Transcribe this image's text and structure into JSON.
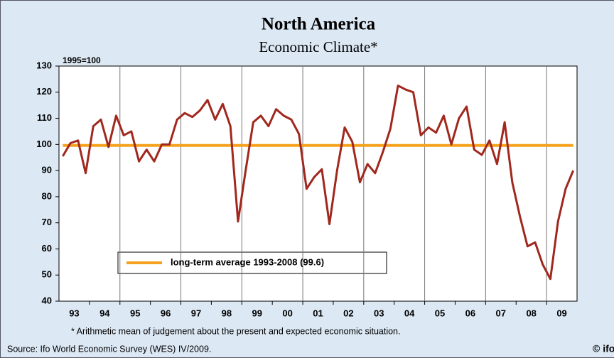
{
  "chart_data": {
    "type": "line",
    "title": "North America",
    "subtitle": "Economic Climate*",
    "y_axis_note": "1995=100",
    "footnote": "* Arithmetic mean of judgement about the present and expected economic situation.",
    "source": "Source: Ifo World Economic Survey (WES) IV/2009.",
    "logo": "© ifo",
    "categories": [
      null,
      "93",
      null,
      null,
      null,
      "94",
      null,
      null,
      null,
      "95",
      null,
      null,
      null,
      "96",
      null,
      null,
      null,
      "97",
      null,
      null,
      null,
      "98",
      null,
      null,
      null,
      "99",
      null,
      null,
      null,
      "00",
      null,
      null,
      null,
      "01",
      null,
      null,
      null,
      "02",
      null,
      null,
      null,
      "03",
      null,
      null,
      null,
      "04",
      null,
      null,
      null,
      "05",
      null,
      null,
      null,
      "06",
      null,
      null,
      null,
      "07",
      null,
      null,
      null,
      "08",
      null,
      null,
      null,
      "09",
      null,
      null
    ],
    "series": [
      {
        "name": "Economic Climate",
        "color": "#a0281e",
        "values": [
          95.5,
          100.5,
          101.5,
          89,
          107,
          109.5,
          99,
          111,
          103.5,
          105,
          93.5,
          98,
          93.5,
          100,
          100,
          109.5,
          112,
          110.5,
          113,
          117,
          109.5,
          115.5,
          107,
          70.5,
          90,
          108.5,
          111,
          107,
          113.5,
          111,
          109.5,
          104,
          83,
          87.5,
          90.5,
          69.5,
          90,
          106.5,
          101,
          85.5,
          92.5,
          89,
          97,
          106,
          122.5,
          121,
          120,
          103.5,
          106.5,
          104.5,
          111,
          100,
          110,
          114.5,
          98,
          96,
          101.5,
          92.5,
          108.5,
          85.5,
          72.5,
          61,
          62.5,
          54,
          48.5,
          70.5,
          83,
          90
        ]
      }
    ],
    "reference_line": {
      "value": 99.6,
      "label": "long-term average 1993-2008 (99.6)",
      "color": "#f5a21e"
    },
    "ylim": [
      40,
      130
    ],
    "yticks": [
      40,
      50,
      60,
      70,
      80,
      90,
      100,
      110,
      120,
      130
    ],
    "grid": false
  }
}
